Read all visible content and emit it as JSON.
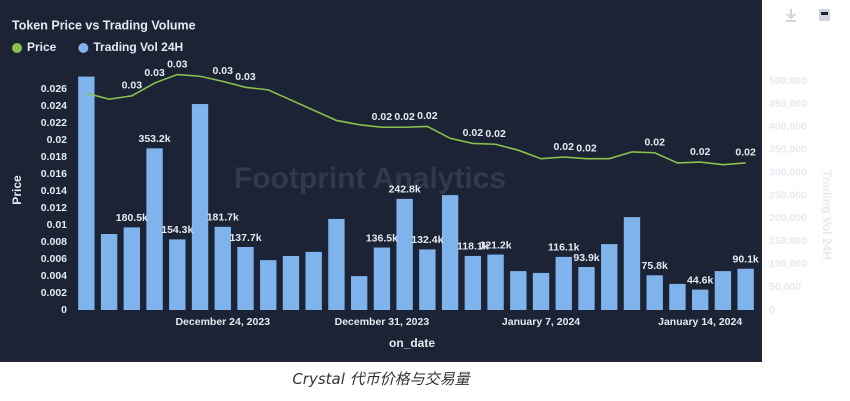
{
  "chart_data": {
    "type": "bar",
    "title": "Token Price vs Trading Volume",
    "watermark": "Footprint Analytics",
    "x_label": "on_date",
    "y_label": "Price",
    "y2_label": "Trading Vol 24H",
    "caption": "Crystal 代币价格与交易量",
    "categories": [
      null,
      null,
      null,
      null,
      null,
      null,
      "December 24, 2023",
      null,
      null,
      null,
      null,
      null,
      null,
      "December 31, 2023",
      null,
      null,
      null,
      null,
      null,
      null,
      "January 7, 2024",
      null,
      null,
      null,
      null,
      null,
      null,
      "January 14, 2024",
      null,
      null
    ],
    "series": [
      {
        "name": "Price",
        "type": "line",
        "axis": "y",
        "color": "#8cc04f",
        "values": [
          0.0255,
          0.0248,
          0.0252,
          0.0267,
          0.0277,
          0.0275,
          0.0269,
          0.0262,
          0.0259,
          0.0247,
          0.0235,
          0.0223,
          0.0218,
          0.0215,
          0.0215,
          0.0216,
          0.0202,
          0.0196,
          0.0195,
          0.0188,
          0.0178,
          0.018,
          0.0178,
          0.0178,
          0.0186,
          0.0185,
          0.0173,
          0.0174,
          0.0171,
          0.0173
        ],
        "value_labels": [
          null,
          null,
          "0.03",
          "0.03",
          "0.03",
          null,
          "0.03",
          "0.03",
          null,
          null,
          null,
          null,
          null,
          "0.02",
          "0.02",
          "0.02",
          null,
          "0.02",
          "0.02",
          null,
          null,
          "0.02",
          "0.02",
          null,
          null,
          "0.02",
          null,
          "0.02",
          null,
          "0.02"
        ]
      },
      {
        "name": "Trading Vol 24H",
        "type": "bar",
        "axis": "y2",
        "color": "#7eb3ec",
        "values": [
          510000,
          166000,
          180500,
          353200,
          154300,
          450000,
          181700,
          137700,
          109000,
          118000,
          127000,
          199000,
          74000,
          136500,
          242800,
          132400,
          251000,
          118100,
          121200,
          85000,
          81000,
          116100,
          93900,
          144000,
          203000,
          75800,
          57000,
          44600,
          85000,
          90100
        ],
        "value_labels": [
          null,
          null,
          "180.5k",
          "353.2k",
          "154.3k",
          null,
          "181.7k",
          "137.7k",
          null,
          null,
          null,
          null,
          null,
          "136.5k",
          "242.8k",
          "132.4k",
          null,
          "118.1k",
          "121.2k",
          null,
          null,
          "116.1k",
          "93.9k",
          null,
          null,
          "75.8k",
          null,
          "44.6k",
          null,
          "90.1k"
        ]
      }
    ],
    "ylim": [
      0,
      0.028
    ],
    "yticks": [
      0,
      0.002,
      0.004,
      0.006,
      0.008,
      0.01,
      0.012,
      0.014,
      0.016,
      0.018,
      0.02,
      0.022,
      0.024,
      0.026
    ],
    "y2lim": [
      0,
      520000
    ],
    "y2ticks": [
      0,
      {
        "value": 50000,
        "label": "50,000"
      },
      {
        "value": 100000,
        "label": "100,000"
      },
      {
        "value": 150000,
        "label": "150,000"
      },
      {
        "value": 200000,
        "label": "200,000"
      },
      {
        "value": 250000,
        "label": "250,000"
      },
      {
        "value": 300000,
        "label": "300,000"
      },
      {
        "value": 350000,
        "label": "350,000"
      },
      {
        "value": 400000,
        "label": "400,000"
      },
      {
        "value": 450000,
        "label": "450,000"
      },
      {
        "value": 500000,
        "label": "500,000"
      }
    ],
    "legend": "top-left"
  }
}
